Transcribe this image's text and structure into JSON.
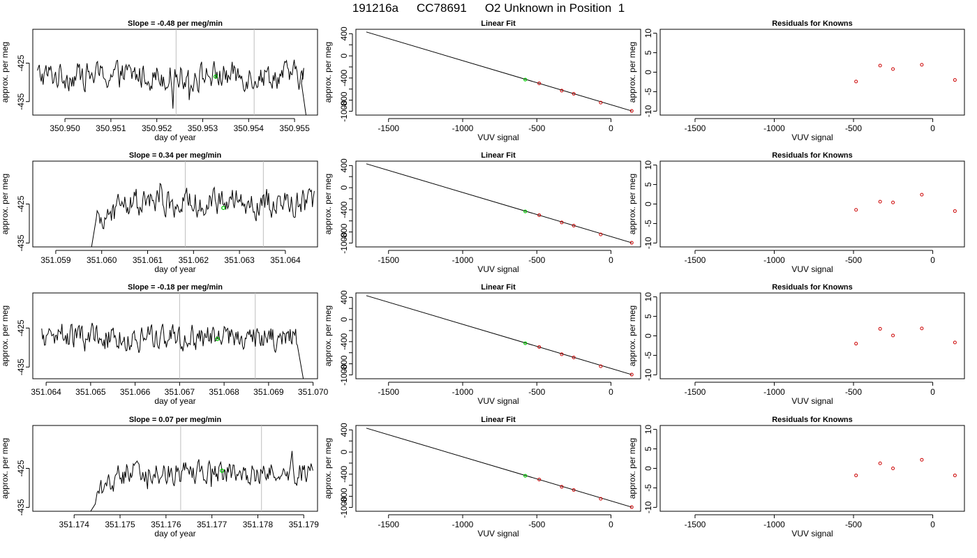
{
  "figure": {
    "title_parts": [
      "191216a",
      "CC78691",
      "O2 Unknown in Position  1"
    ]
  },
  "colors": {
    "line": "#000000",
    "marker_unknown": "#00cc00",
    "marker_known": "#cc0000",
    "vline": "#bebebe",
    "frame": "#000000"
  },
  "chart_data": [
    {
      "type": "line",
      "row": 0,
      "col": 0,
      "title": "Slope =  -0.48  per meg/min",
      "xlabel": "day of year",
      "ylabel": "approx. per meg",
      "xlim": [
        350.9493,
        350.9555
      ],
      "ylim": [
        -438.5,
        -416.2
      ],
      "xticks": [
        350.95,
        350.951,
        350.952,
        350.953,
        350.954,
        350.955
      ],
      "xtick_labels": [
        "350.950",
        "350.951",
        "350.952",
        "350.953",
        "350.954",
        "350.955"
      ],
      "yticks": [
        -425,
        -435
      ],
      "ytick_labels": [
        "-425",
        "-435"
      ],
      "x_start": 350.9494,
      "x_end": 350.9552,
      "n_points": 280,
      "level": -428.2,
      "noise": 1.7,
      "start_drop": null,
      "end_drop": {
        "x0": 350.95515,
        "x1": 350.95525,
        "y1": -438.5
      },
      "vlines": [
        350.95242,
        350.95412
      ],
      "unknown_marker": {
        "x": 350.95328,
        "y": -428.5
      }
    },
    {
      "type": "scatter",
      "row": 0,
      "col": 1,
      "title": "Linear Fit",
      "xlabel": "VUV signal",
      "ylabel": "approx. per meg",
      "xlim": [
        -1720,
        200
      ],
      "ylim": [
        -1070,
        480
      ],
      "xticks": [
        -1500,
        -1000,
        -500,
        0
      ],
      "xtick_labels": [
        "-1500",
        "-1000",
        "-500",
        "0"
      ],
      "yticks": [
        400,
        200,
        0,
        -200,
        -400,
        -600,
        -800,
        -1000
      ],
      "ytick_labels": [
        "400",
        "",
        "0",
        "",
        "-400",
        "",
        "-800",
        "-1000"
      ],
      "fit_line": {
        "x0": -1650,
        "y0": 432,
        "x1": 140,
        "y1": -995
      },
      "known_points": [
        {
          "x": -484,
          "y": -497
        },
        {
          "x": -332,
          "y": -628
        },
        {
          "x": -251,
          "y": -686
        },
        {
          "x": -69,
          "y": -845
        },
        {
          "x": 140,
          "y": -995
        }
      ],
      "unknown_point": {
        "x": -578,
        "y": -428
      }
    },
    {
      "type": "scatter",
      "row": 0,
      "col": 2,
      "title": "Residuals for Knowns",
      "xlabel": "VUV signal",
      "ylabel": "approx. per meg",
      "xlim": [
        -1720,
        200
      ],
      "ylim": [
        -11,
        11
      ],
      "xticks": [
        -1500,
        -1000,
        -500,
        0
      ],
      "xtick_labels": [
        "-1500",
        "-1000",
        "-500",
        "0"
      ],
      "yticks": [
        10,
        5,
        0,
        -5,
        -10
      ],
      "ytick_labels": [
        "10",
        "5",
        "0",
        "-5",
        "-10"
      ],
      "points": [
        {
          "x": -484,
          "y": -2.4
        },
        {
          "x": -332,
          "y": 1.7
        },
        {
          "x": -251,
          "y": 0.8
        },
        {
          "x": -69,
          "y": 1.9
        },
        {
          "x": 140,
          "y": -2.0
        }
      ]
    },
    {
      "type": "line",
      "row": 1,
      "col": 0,
      "title": "Slope =  0.34  per meg/min",
      "xlabel": "day of year",
      "ylabel": "approx. per meg",
      "xlim": [
        351.0585,
        351.0647
      ],
      "ylim": [
        -436.0,
        -414.0
      ],
      "xticks": [
        351.059,
        351.06,
        351.061,
        351.062,
        351.063,
        351.064
      ],
      "xtick_labels": [
        "351.059",
        "351.060",
        "351.061",
        "351.062",
        "351.063",
        "351.064"
      ],
      "yticks": [
        -425,
        -435
      ],
      "ytick_labels": [
        "-425",
        "-435"
      ],
      "x_start": 351.05988,
      "x_end": 351.06463,
      "n_points": 230,
      "level": -424.8,
      "noise": 1.7,
      "start_drop": {
        "x0": 351.05978,
        "y0": -436.0
      },
      "end_drop": null,
      "vlines": [
        351.06182,
        351.06352
      ],
      "unknown_marker": {
        "x": 351.06265,
        "y": -426.0
      }
    },
    {
      "type": "scatter",
      "row": 1,
      "col": 1,
      "title": "Linear Fit",
      "xlabel": "VUV signal",
      "ylabel": "approx. per meg",
      "xlim": [
        -1720,
        200
      ],
      "ylim": [
        -1070,
        480
      ],
      "xticks": [
        -1500,
        -1000,
        -500,
        0
      ],
      "xtick_labels": [
        "-1500",
        "-1000",
        "-500",
        "0"
      ],
      "yticks": [
        400,
        200,
        0,
        -200,
        -400,
        -600,
        -800,
        -1000
      ],
      "ytick_labels": [
        "400",
        "",
        "0",
        "",
        "-400",
        "",
        "-800",
        "-1000"
      ],
      "fit_line": {
        "x0": -1650,
        "y0": 432,
        "x1": 140,
        "y1": -995
      },
      "known_points": [
        {
          "x": -484,
          "y": -497
        },
        {
          "x": -332,
          "y": -628
        },
        {
          "x": -251,
          "y": -686
        },
        {
          "x": -69,
          "y": -845
        },
        {
          "x": 140,
          "y": -995
        }
      ],
      "unknown_point": {
        "x": -578,
        "y": -428
      }
    },
    {
      "type": "scatter",
      "row": 1,
      "col": 2,
      "title": "Residuals for Knowns",
      "xlabel": "VUV signal",
      "ylabel": "approx. per meg",
      "xlim": [
        -1720,
        200
      ],
      "ylim": [
        -11,
        11
      ],
      "xticks": [
        -1500,
        -1000,
        -500,
        0
      ],
      "xtick_labels": [
        "-1500",
        "-1000",
        "-500",
        "0"
      ],
      "yticks": [
        10,
        5,
        0,
        -5,
        -10
      ],
      "ytick_labels": [
        "10",
        "5",
        "0",
        "-5",
        "-10"
      ],
      "points": [
        {
          "x": -484,
          "y": -1.5
        },
        {
          "x": -332,
          "y": 0.6
        },
        {
          "x": -251,
          "y": 0.4
        },
        {
          "x": -69,
          "y": 2.4
        },
        {
          "x": 140,
          "y": -1.8
        }
      ]
    },
    {
      "type": "line",
      "row": 2,
      "col": 0,
      "title": "Slope =  -0.18  per meg/min",
      "xlabel": "day of year",
      "ylabel": "approx. per meg",
      "xlim": [
        351.0637,
        351.0701
      ],
      "ylim": [
        -438.0,
        -416.0
      ],
      "xticks": [
        351.064,
        351.065,
        351.066,
        351.067,
        351.068,
        351.069,
        351.07
      ],
      "xtick_labels": [
        "351.064",
        "351.065",
        "351.066",
        "351.067",
        "351.068",
        "351.069",
        "351.070"
      ],
      "yticks": [
        -425,
        -435
      ],
      "ytick_labels": [
        "-425",
        "-435"
      ],
      "x_start": 351.0639,
      "x_end": 351.06965,
      "n_points": 280,
      "level": -427.6,
      "noise": 1.6,
      "start_drop": null,
      "end_drop": {
        "x0": 351.06965,
        "x1": 351.06978,
        "y1": -438.0
      },
      "vlines": [
        351.067,
        351.0687
      ],
      "unknown_marker": {
        "x": 351.06785,
        "y": -427.8
      }
    },
    {
      "type": "scatter",
      "row": 2,
      "col": 1,
      "title": "Linear Fit",
      "xlabel": "VUV signal",
      "ylabel": "approx. per meg",
      "xlim": [
        -1720,
        200
      ],
      "ylim": [
        -1070,
        480
      ],
      "xticks": [
        -1500,
        -1000,
        -500,
        0
      ],
      "xtick_labels": [
        "-1500",
        "-1000",
        "-500",
        "0"
      ],
      "yticks": [
        400,
        200,
        0,
        -200,
        -400,
        -600,
        -800,
        -1000
      ],
      "ytick_labels": [
        "400",
        "",
        "0",
        "",
        "-400",
        "",
        "-800",
        "-1000"
      ],
      "fit_line": {
        "x0": -1650,
        "y0": 432,
        "x1": 140,
        "y1": -995
      },
      "known_points": [
        {
          "x": -484,
          "y": -497
        },
        {
          "x": -332,
          "y": -628
        },
        {
          "x": -251,
          "y": -686
        },
        {
          "x": -69,
          "y": -845
        },
        {
          "x": 140,
          "y": -995
        }
      ],
      "unknown_point": {
        "x": -578,
        "y": -428
      }
    },
    {
      "type": "scatter",
      "row": 2,
      "col": 2,
      "title": "Residuals for Knowns",
      "xlabel": "VUV signal",
      "ylabel": "approx. per meg",
      "xlim": [
        -1720,
        200
      ],
      "ylim": [
        -11,
        11
      ],
      "xticks": [
        -1500,
        -1000,
        -500,
        0
      ],
      "xtick_labels": [
        "-1500",
        "-1000",
        "-500",
        "0"
      ],
      "yticks": [
        10,
        5,
        0,
        -5,
        -10
      ],
      "ytick_labels": [
        "10",
        "5",
        "0",
        "-5",
        "-10"
      ],
      "points": [
        {
          "x": -484,
          "y": -2.0
        },
        {
          "x": -332,
          "y": 1.8
        },
        {
          "x": -251,
          "y": 0.1
        },
        {
          "x": -69,
          "y": 1.9
        },
        {
          "x": 140,
          "y": -1.7
        }
      ]
    },
    {
      "type": "line",
      "row": 3,
      "col": 0,
      "title": "Slope =  0.07  per meg/min",
      "xlabel": "day of year",
      "ylabel": "approx. per meg",
      "xlim": [
        351.1731,
        351.1793
      ],
      "ylim": [
        -436.0,
        -414.0
      ],
      "xticks": [
        351.174,
        351.175,
        351.176,
        351.177,
        351.178,
        351.179
      ],
      "xtick_labels": [
        "351.174",
        "351.175",
        "351.176",
        "351.177",
        "351.178",
        "351.179"
      ],
      "yticks": [
        -425,
        -435
      ],
      "ytick_labels": [
        "-425",
        "-435"
      ],
      "x_start": 351.17446,
      "x_end": 351.1792,
      "n_points": 230,
      "level": -425.8,
      "noise": 1.5,
      "start_drop": {
        "x0": 351.17436,
        "y0": -436.0
      },
      "end_drop": null,
      "vlines": [
        351.17632,
        351.17808
      ],
      "unknown_marker": {
        "x": 351.17722,
        "y": -425.6
      }
    },
    {
      "type": "scatter",
      "row": 3,
      "col": 1,
      "title": "Linear Fit",
      "xlabel": "VUV signal",
      "ylabel": "approx. per meg",
      "xlim": [
        -1720,
        200
      ],
      "ylim": [
        -1070,
        480
      ],
      "xticks": [
        -1500,
        -1000,
        -500,
        0
      ],
      "xtick_labels": [
        "-1500",
        "-1000",
        "-500",
        "0"
      ],
      "yticks": [
        400,
        200,
        0,
        -200,
        -400,
        -600,
        -800,
        -1000
      ],
      "ytick_labels": [
        "400",
        "",
        "0",
        "",
        "-400",
        "",
        "-800",
        "-1000"
      ],
      "fit_line": {
        "x0": -1650,
        "y0": 432,
        "x1": 140,
        "y1": -995
      },
      "known_points": [
        {
          "x": -484,
          "y": -497
        },
        {
          "x": -332,
          "y": -628
        },
        {
          "x": -251,
          "y": -686
        },
        {
          "x": -69,
          "y": -845
        },
        {
          "x": 140,
          "y": -995
        }
      ],
      "unknown_point": {
        "x": -578,
        "y": -428
      }
    },
    {
      "type": "scatter",
      "row": 3,
      "col": 2,
      "title": "Residuals for Knowns",
      "xlabel": "VUV signal",
      "ylabel": "approx. per meg",
      "xlim": [
        -1720,
        200
      ],
      "ylim": [
        -11,
        11
      ],
      "xticks": [
        -1500,
        -1000,
        -500,
        0
      ],
      "xtick_labels": [
        "-1500",
        "-1000",
        "-500",
        "0"
      ],
      "yticks": [
        10,
        5,
        0,
        -5,
        -10
      ],
      "ytick_labels": [
        "10",
        "5",
        "0",
        "-5",
        "-10"
      ],
      "points": [
        {
          "x": -484,
          "y": -1.8
        },
        {
          "x": -332,
          "y": 1.3
        },
        {
          "x": -251,
          "y": 0.0
        },
        {
          "x": -69,
          "y": 2.2
        },
        {
          "x": 140,
          "y": -1.8
        }
      ]
    }
  ]
}
